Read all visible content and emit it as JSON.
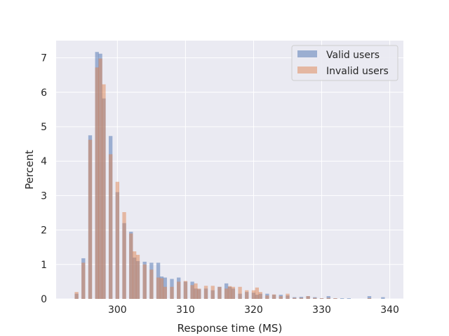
{
  "chart_data": {
    "type": "bar",
    "title": "",
    "xlabel": "Response time (MS)",
    "ylabel": "Percent",
    "xlim": [
      291,
      342
    ],
    "ylim": [
      0,
      7.5
    ],
    "xticks": [
      300,
      310,
      320,
      330,
      340
    ],
    "yticks": [
      0,
      1,
      2,
      3,
      4,
      5,
      6,
      7
    ],
    "grid": true,
    "legend_position": "top-right",
    "series": [
      {
        "name": "Valid users",
        "color": "#4c72b0",
        "x": [
          294,
          295,
          296,
          297,
          297.5,
          298,
          299,
          300,
          301,
          302,
          302.5,
          303,
          304,
          305,
          306,
          306.5,
          307,
          308,
          309,
          310,
          311,
          311.5,
          312,
          313,
          314,
          315,
          316,
          316.5,
          317,
          318,
          319,
          320,
          320.5,
          321,
          322,
          323,
          324,
          325,
          326,
          327,
          328,
          329,
          330,
          331,
          332,
          333,
          334,
          337,
          339
        ],
        "values": [
          0.15,
          1.18,
          4.75,
          7.17,
          7.12,
          5.82,
          4.73,
          3.1,
          2.2,
          1.95,
          1.2,
          1.1,
          1.08,
          1.05,
          1.05,
          0.65,
          0.62,
          0.58,
          0.62,
          0.5,
          0.5,
          0.3,
          0.28,
          0.3,
          0.25,
          0.35,
          0.45,
          0.35,
          0.3,
          0.15,
          0.2,
          0.18,
          0.12,
          0.15,
          0.15,
          0.12,
          0.12,
          0.1,
          0.05,
          0.06,
          0.08,
          0.05,
          0.02,
          0.08,
          0.02,
          0.02,
          0.02,
          0.08,
          0.05
        ]
      },
      {
        "name": "Invalid users",
        "color": "#dd8452",
        "x": [
          294,
          295,
          296,
          297,
          297.5,
          298,
          299,
          300,
          301,
          302,
          302.5,
          303,
          304,
          305,
          306,
          306.5,
          307,
          308,
          309,
          310,
          311,
          311.5,
          312,
          313,
          314,
          315,
          316,
          316.5,
          317,
          318,
          319,
          320,
          320.5,
          321,
          322,
          323,
          324,
          325,
          326,
          327,
          328,
          329,
          330,
          331,
          332,
          333,
          334,
          337,
          339
        ],
        "values": [
          0.2,
          1.05,
          4.62,
          6.72,
          6.98,
          6.23,
          4.2,
          3.4,
          2.52,
          1.9,
          1.38,
          1.28,
          1.0,
          0.85,
          0.62,
          0.6,
          0.35,
          0.35,
          0.5,
          0.52,
          0.4,
          0.45,
          0.3,
          0.38,
          0.38,
          0.35,
          0.3,
          0.37,
          0.35,
          0.35,
          0.25,
          0.25,
          0.33,
          0.2,
          0.1,
          0.13,
          0.08,
          0.15,
          0.03,
          0.03,
          0.08,
          0.03,
          0.02,
          0.03,
          0.02,
          0.0,
          0.0,
          0.02,
          0.0
        ]
      }
    ]
  }
}
